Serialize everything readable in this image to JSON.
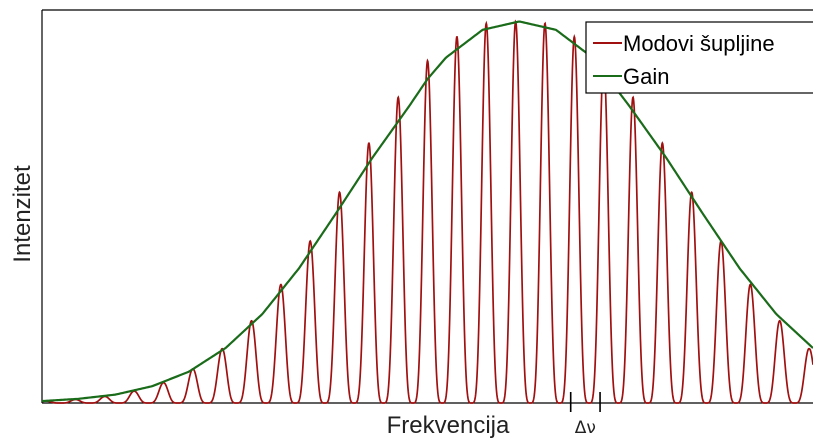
{
  "chart_data": {
    "type": "line",
    "xlabel": "Frekvencija",
    "ylabel": "Intenzitet",
    "xlim": [
      -10.5,
      10.5
    ],
    "ylim": [
      0,
      1.03
    ],
    "grid": false,
    "legend_position": "top-right",
    "spacing_marker_label": "Δν",
    "spacing_marker_x": [
      3.9,
      4.7
    ],
    "series": [
      {
        "name": "Modovi šupljine",
        "color": "#a01010",
        "kind": "modes",
        "mode_spacing": 0.8,
        "peak_x": [
          -10.4,
          -9.6,
          -8.8,
          -8.0,
          -7.2,
          -6.4,
          -5.6,
          -4.8,
          -4.0,
          -3.2,
          -2.4,
          -1.6,
          -0.8,
          0.0,
          0.8,
          1.6,
          2.4,
          3.2,
          4.0,
          4.8,
          5.6,
          6.4,
          7.2,
          8.0,
          8.8,
          9.6,
          10.4
        ],
        "peak_y": [
          0.005,
          0.009,
          0.017,
          0.031,
          0.053,
          0.089,
          0.142,
          0.215,
          0.31,
          0.424,
          0.552,
          0.681,
          0.801,
          0.897,
          0.96,
          0.995,
          1.0,
          0.995,
          0.96,
          0.897,
          0.801,
          0.681,
          0.552,
          0.424,
          0.31,
          0.215,
          0.142
        ]
      },
      {
        "name": "Gain",
        "color": "#1a6b1a",
        "kind": "envelope",
        "x": [
          -10.5,
          -9.5,
          -8.5,
          -7.5,
          -6.5,
          -5.5,
          -4.5,
          -3.5,
          -2.5,
          -1.5,
          -0.5,
          0.0,
          0.5,
          1.5,
          2.5,
          3.5,
          4.5,
          5.5,
          6.5,
          7.5,
          8.5,
          9.5,
          10.5
        ],
        "y": [
          0.005,
          0.011,
          0.022,
          0.044,
          0.082,
          0.144,
          0.233,
          0.353,
          0.496,
          0.643,
          0.778,
          0.849,
          0.905,
          0.978,
          1.0,
          0.978,
          0.905,
          0.778,
          0.643,
          0.496,
          0.353,
          0.233,
          0.144
        ]
      }
    ]
  }
}
